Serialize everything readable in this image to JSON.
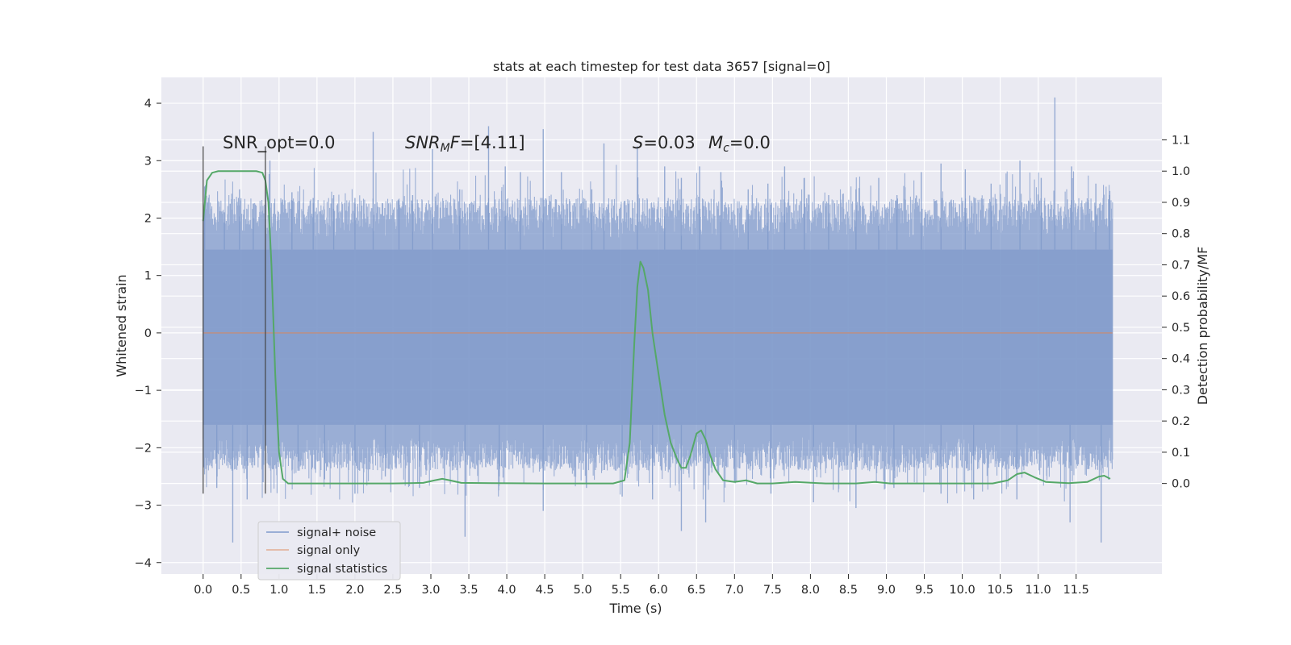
{
  "chart_data": {
    "type": "line",
    "title": "stats at each timestep for test data 3657 [signal=0]",
    "xlabel": "Time (s)",
    "ylabel": "Whitened strain",
    "y2label": "Detection probability/MF",
    "xlim": [
      -0.55,
      12.63
    ],
    "ylim": [
      -4.2,
      4.45
    ],
    "y2lim": [
      -0.29,
      1.3
    ],
    "x_ticks": [
      "0.0",
      "0.5",
      "1.0",
      "1.5",
      "2.0",
      "2.5",
      "3.0",
      "3.5",
      "4.0",
      "4.5",
      "5.0",
      "5.5",
      "6.0",
      "6.5",
      "7.0",
      "7.5",
      "8.0",
      "8.5",
      "9.0",
      "9.5",
      "10.0",
      "10.5",
      "11.0",
      "11.5"
    ],
    "y_ticks": [
      "4",
      "3",
      "2",
      "1",
      "0",
      "−1",
      "−2",
      "−3",
      "−4"
    ],
    "y2_ticks": [
      "1.1",
      "1.0",
      "0.9",
      "0.8",
      "0.7",
      "0.6",
      "0.5",
      "0.4",
      "0.3",
      "0.2",
      "0.1",
      "0.0"
    ],
    "grid": true,
    "legend_position": "lower-left",
    "annotations": {
      "snr_opt": "SNR_opt=0.0",
      "snr_mf_label": "SNR",
      "snr_mf_sub": "M",
      "snr_mf_tail": "F",
      "snr_mf_value": "=[4.11]",
      "s_label": "S",
      "s_value": "=0.03",
      "mc_label": "M",
      "mc_sub": "c",
      "mc_value": "=0.0"
    },
    "markers": {
      "vlines_x": [
        0.0,
        0.82
      ],
      "vlines_y": [
        -2.8,
        3.25
      ]
    },
    "series": [
      {
        "name": "signal+ noise",
        "axis": "left",
        "color": "#7f9acb",
        "x_range": [
          0.0,
          11.98
        ],
        "core_band": [
          -1.6,
          1.45
        ],
        "peaks_x": [
          0.02,
          0.28,
          0.48,
          0.66,
          0.88,
          1.17,
          1.45,
          1.72,
          2.0,
          2.24,
          2.58,
          2.76,
          3.02,
          3.38,
          3.76,
          3.98,
          4.18,
          4.48,
          4.72,
          5.12,
          5.28,
          5.72,
          6.08,
          6.3,
          6.54,
          6.82,
          7.18,
          7.44,
          7.66,
          7.92,
          8.24,
          8.6,
          8.9,
          9.14,
          9.46,
          9.72,
          10.04,
          10.38,
          10.76,
          11.04,
          11.22,
          11.44,
          11.76,
          11.94
        ],
        "peaks_y": [
          2.55,
          2.1,
          2.5,
          2.25,
          3.0,
          2.45,
          2.35,
          2.4,
          2.35,
          3.5,
          2.3,
          2.4,
          3.2,
          2.5,
          3.6,
          2.9,
          2.8,
          3.55,
          2.8,
          2.5,
          3.3,
          3.25,
          2.9,
          2.7,
          2.9,
          2.8,
          2.5,
          2.6,
          2.9,
          2.7,
          2.4,
          2.5,
          2.7,
          2.4,
          2.8,
          2.95,
          2.85,
          2.6,
          3.0,
          2.7,
          4.1,
          2.9,
          2.6,
          2.4
        ],
        "troughs_x": [
          0.18,
          0.39,
          0.58,
          0.79,
          1.25,
          1.6,
          2.0,
          2.4,
          2.85,
          3.45,
          3.9,
          4.48,
          5.05,
          5.52,
          5.92,
          6.3,
          6.62,
          7.0,
          7.48,
          8.04,
          8.6,
          9.1,
          9.72,
          10.15,
          10.72,
          11.42,
          11.83
        ],
        "troughs_y": [
          -2.7,
          -3.65,
          -2.9,
          -2.6,
          -2.4,
          -2.55,
          -2.8,
          -2.5,
          -2.7,
          -3.55,
          -2.5,
          -3.1,
          -2.7,
          -2.85,
          -2.9,
          -3.45,
          -3.3,
          -2.6,
          -2.8,
          -2.95,
          -3.05,
          -2.7,
          -2.8,
          -2.9,
          -2.9,
          -3.3,
          -3.65
        ]
      },
      {
        "name": "signal only",
        "axis": "left",
        "color": "#dd8452",
        "x": [
          0.0,
          11.98
        ],
        "y": [
          0.0,
          0.0
        ]
      },
      {
        "name": "signal statistics",
        "axis": "right",
        "color": "#55a868",
        "x": [
          0.0,
          0.05,
          0.12,
          0.2,
          0.3,
          0.45,
          0.6,
          0.7,
          0.78,
          0.82,
          0.86,
          0.9,
          0.95,
          1.0,
          1.05,
          1.12,
          1.5,
          2.0,
          2.5,
          2.9,
          3.05,
          3.15,
          3.25,
          3.4,
          3.8,
          4.5,
          5.0,
          5.4,
          5.55,
          5.62,
          5.68,
          5.72,
          5.76,
          5.8,
          5.86,
          5.92,
          6.0,
          6.08,
          6.16,
          6.24,
          6.3,
          6.36,
          6.42,
          6.5,
          6.56,
          6.62,
          6.68,
          6.75,
          6.85,
          7.0,
          7.15,
          7.3,
          7.5,
          7.8,
          8.2,
          8.6,
          8.85,
          9.05,
          9.5,
          10.0,
          10.4,
          10.6,
          10.72,
          10.82,
          10.95,
          11.1,
          11.4,
          11.65,
          11.8,
          11.87,
          11.95
        ],
        "y": [
          0.84,
          0.97,
          0.995,
          1.0,
          1.0,
          1.0,
          1.0,
          1.0,
          0.995,
          0.97,
          0.9,
          0.7,
          0.35,
          0.1,
          0.015,
          0.0,
          0.0,
          0.0,
          0.0,
          0.002,
          0.01,
          0.015,
          0.01,
          0.002,
          0.001,
          0.0,
          0.0,
          0.0,
          0.01,
          0.13,
          0.45,
          0.63,
          0.71,
          0.69,
          0.62,
          0.48,
          0.35,
          0.22,
          0.13,
          0.08,
          0.05,
          0.05,
          0.09,
          0.16,
          0.17,
          0.14,
          0.09,
          0.045,
          0.01,
          0.005,
          0.01,
          0.0,
          0.0,
          0.005,
          0.0,
          0.0,
          0.005,
          0.0,
          0.0,
          0.0,
          0.0,
          0.01,
          0.03,
          0.035,
          0.02,
          0.005,
          0.001,
          0.005,
          0.022,
          0.025,
          0.015
        ]
      }
    ]
  }
}
